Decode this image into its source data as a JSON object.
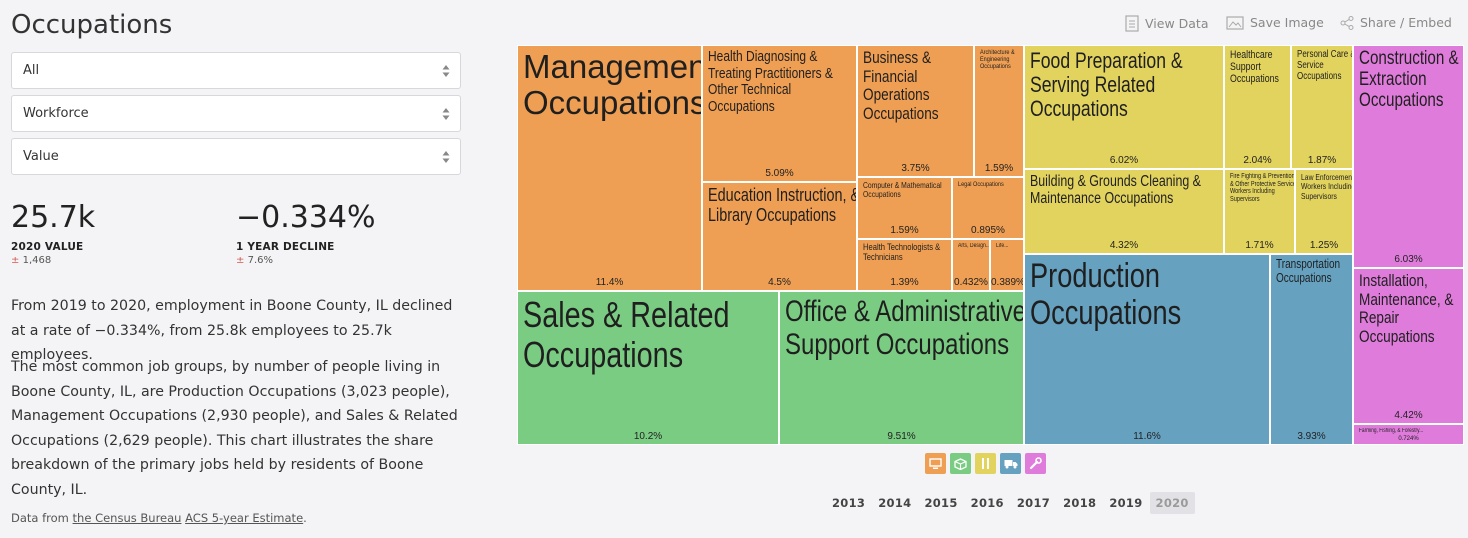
{
  "header": {
    "title": "Occupations"
  },
  "filters": [
    {
      "value": "All"
    },
    {
      "value": "Workforce"
    },
    {
      "value": "Value"
    }
  ],
  "stats": [
    {
      "value": "25.7k",
      "label": "2020 VALUE",
      "moe_sign": "±",
      "moe": "1,468"
    },
    {
      "value": "−0.334%",
      "label": "1 YEAR DECLINE",
      "moe_sign": "±",
      "moe": "7.6%"
    }
  ],
  "text": {
    "p1": "From 2019 to 2020, employment in Boone County, IL declined at a rate of −0.334%, from 25.8k employees to 25.7k employees.",
    "p2": "The most common job groups, by number of people living in Boone County, IL, are Production Occupations (3,023 people), Management Occupations (2,930 people), and Sales & Related Occupations (2,629 people). This chart illustrates the share breakdown of the primary jobs held by residents of Boone County, IL."
  },
  "source": {
    "prefix": "Data from ",
    "link1": "the Census Bureau",
    "sep": " ",
    "link2": "ACS 5-year Estimate",
    "suffix": "."
  },
  "options": {
    "view_data": "View Data",
    "save_image": "Save Image",
    "share": "Share / Embed"
  },
  "colors": {
    "management": "#ef9f53",
    "food": "#e2d35f",
    "sales": "#7bcc83",
    "production": "#66a2c0",
    "construction": "#df7cdb"
  },
  "category_icons": [
    {
      "name": "monitor-icon",
      "color": "#ef9f53"
    },
    {
      "name": "box-icon",
      "color": "#7bcc83"
    },
    {
      "name": "fork-knife-icon",
      "color": "#e2d35f"
    },
    {
      "name": "truck-icon",
      "color": "#66a2c0"
    },
    {
      "name": "wrench-icon",
      "color": "#df7cdb"
    }
  ],
  "years": [
    "2013",
    "2014",
    "2015",
    "2016",
    "2017",
    "2018",
    "2019",
    "2020"
  ],
  "selected_year": "2020",
  "chart_data": {
    "type": "treemap",
    "unit": "share of workforce",
    "groups": [
      {
        "group": "management",
        "items": [
          {
            "label": "Management Occupations",
            "value": "11.4%"
          },
          {
            "label": "Health Diagnosing & Treating Practitioners & Other Technical Occupations",
            "value": "5.09%"
          },
          {
            "label": "Education Instruction, & Library Occupations",
            "value": "4.5%"
          },
          {
            "label": "Business & Financial Operations Occupations",
            "value": "3.75%"
          },
          {
            "label": "Architecture & Engineering Occupations",
            "value": "1.59%"
          },
          {
            "label": "Computer & Mathematical Occupations",
            "value": "1.59%"
          },
          {
            "label": "Legal Occupations",
            "value": "0.895%"
          },
          {
            "label": "Health Technologists & Technicians",
            "value": "1.39%"
          },
          {
            "label": "Arts, Design...",
            "value": "0.432%"
          },
          {
            "label": "Life...",
            "value": "0.389%"
          }
        ]
      },
      {
        "group": "food",
        "items": [
          {
            "label": "Food Preparation & Serving Related Occupations",
            "value": "6.02%"
          },
          {
            "label": "Healthcare Support Occupations",
            "value": "2.04%"
          },
          {
            "label": "Personal Care & Service Occupations",
            "value": "1.87%"
          },
          {
            "label": "Building & Grounds Cleaning & Maintenance Occupations",
            "value": "4.32%"
          },
          {
            "label": "Fire Fighting & Prevention, & Other Protective Service Workers Including Supervisors",
            "value": "1.71%"
          },
          {
            "label": "Law Enforcement Workers Including Supervisors",
            "value": "1.25%"
          }
        ]
      },
      {
        "group": "sales",
        "items": [
          {
            "label": "Sales & Related Occupations",
            "value": "10.2%"
          },
          {
            "label": "Office & Administrative Support Occupations",
            "value": "9.51%"
          }
        ]
      },
      {
        "group": "production",
        "items": [
          {
            "label": "Production Occupations",
            "value": "11.6%"
          },
          {
            "label": "Transportation Occupations",
            "value": "3.93%"
          }
        ]
      },
      {
        "group": "construction",
        "items": [
          {
            "label": "Construction & Extraction Occupations",
            "value": "6.03%"
          },
          {
            "label": "Installation, Maintenance, & Repair Occupations",
            "value": "4.42%"
          },
          {
            "label": "Farming, Fishing, & Forestry...",
            "value": "0.724%"
          }
        ]
      }
    ]
  }
}
